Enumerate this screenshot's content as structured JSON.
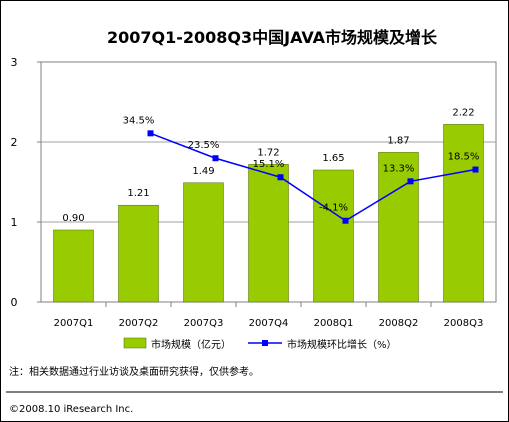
{
  "chart_data": {
    "type": "bar",
    "title": "2007Q1-2008Q3中国JAVA市场规模及增长",
    "categories": [
      "2007Q1",
      "2007Q2",
      "2007Q3",
      "2007Q4",
      "2008Q1",
      "2008Q2",
      "2008Q3"
    ],
    "ylim": [
      0,
      3
    ],
    "yticks": [
      "0",
      "1",
      "2",
      "3"
    ],
    "series": [
      {
        "name": "市场规模（亿元）",
        "type": "bar",
        "values": [
          0.9,
          1.21,
          1.49,
          1.72,
          1.65,
          1.87,
          2.22
        ],
        "labels": [
          "0.90",
          "1.21",
          "1.49",
          "1.72",
          "1.65",
          "1.87",
          "2.22"
        ],
        "color": "#99CC00"
      },
      {
        "name": "市场规模环比增长（%）",
        "type": "line",
        "values": [
          null,
          34.5,
          23.5,
          15.1,
          -4.1,
          13.3,
          18.5
        ],
        "labels": [
          "",
          "34.5%",
          "23.5%",
          "15.1%",
          "-4.1%",
          "13.3%",
          "18.5%"
        ],
        "color": "#0000FF"
      }
    ],
    "legend": "bottom",
    "grid": true
  },
  "footer": {
    "note": "注：相关数据通过行业访谈及桌面研究获得，仅供参考。",
    "copyright": "©2008.10 iResearch Inc."
  }
}
